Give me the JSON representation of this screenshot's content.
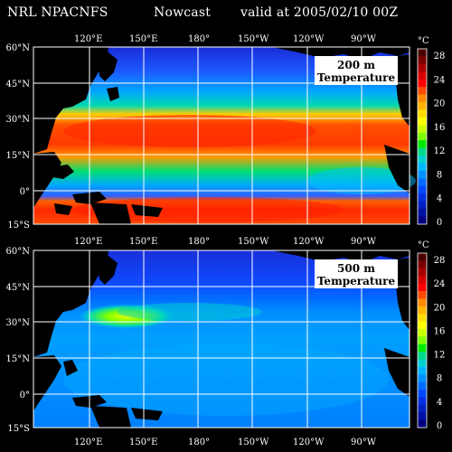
{
  "header": {
    "org": "NRL NPACNFS",
    "mode": "Nowcast",
    "valid": "valid at 2005/02/10 00Z"
  },
  "panels": [
    {
      "depth": "200 m",
      "variable": "Temperature"
    },
    {
      "depth": "500 m",
      "variable": "Temperature"
    }
  ],
  "axes": {
    "lon_labels": [
      "120°E",
      "150°E",
      "180°",
      "150°W",
      "120°W",
      "90°W"
    ],
    "lat_labels": [
      "60°N",
      "45°N",
      "30°N",
      "15°N",
      "0°",
      "15°S"
    ]
  },
  "colorbar": {
    "unit": "°C",
    "ticks": [
      "28",
      "24",
      "20",
      "16",
      "12",
      "8",
      "4",
      "0"
    ],
    "colors": [
      "#4b0000",
      "#7a0000",
      "#a80000",
      "#d40000",
      "#ff0000",
      "#ff4a00",
      "#ff8a00",
      "#ffb400",
      "#ffdd00",
      "#ffff00",
      "#c8ff00",
      "#7cff00",
      "#00e800",
      "#00d88a",
      "#00d0d0",
      "#00b4ff",
      "#0090ff",
      "#006cff",
      "#0048ff",
      "#0030e0",
      "#0020c0",
      "#0010a0",
      "#000080"
    ]
  },
  "colors": {
    "background": "#000000",
    "land": "#000000",
    "grid": "#ffffff"
  }
}
